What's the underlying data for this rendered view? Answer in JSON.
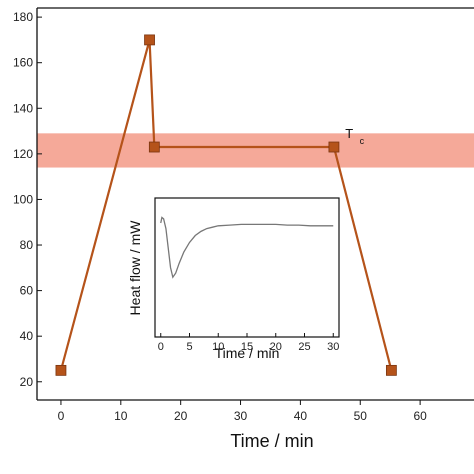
{
  "chart_data": [
    {
      "type": "line",
      "xlabel": "Time / min",
      "ylabel": "",
      "xlim": [
        -4,
        69
      ],
      "ylim": [
        12,
        184
      ],
      "x_ticks": [
        0,
        10,
        20,
        30,
        40,
        50,
        60
      ],
      "y_ticks": [
        20,
        40,
        60,
        80,
        100,
        120,
        140,
        160,
        180
      ],
      "grid": false,
      "series": [
        {
          "x": [
            0,
            14.8,
            15.6,
            45.6,
            55.2
          ],
          "y": [
            25,
            170,
            123,
            123,
            25
          ],
          "color": "#b5531a",
          "marker": "square"
        }
      ],
      "band": {
        "y": [
          114,
          129
        ],
        "color": "#f4a08e"
      },
      "annotation": {
        "text": "T",
        "subscript": "c",
        "x": 47.5,
        "y": 127
      }
    },
    {
      "type": "line",
      "xlabel": "Time / min",
      "ylabel": "Heat flow / mW",
      "xlim": [
        -1,
        31
      ],
      "ylim": [
        0,
        100
      ],
      "x_ticks": [
        0,
        5,
        10,
        15,
        20,
        25,
        30
      ],
      "grid": false,
      "series": [
        {
          "x": [
            0,
            0.2,
            0.5,
            0.9,
            1.3,
            1.7,
            2.1,
            2.6,
            3.2,
            4,
            5,
            6,
            7,
            8,
            9,
            10,
            12,
            14,
            16,
            18,
            20,
            22,
            24,
            26,
            28,
            30
          ],
          "y": [
            82,
            86,
            85,
            78,
            64,
            50,
            43,
            46,
            53,
            61,
            68,
            73,
            76,
            78,
            79,
            80,
            80.5,
            81,
            81,
            81,
            81,
            80.5,
            80.5,
            80,
            80,
            80
          ],
          "color": "#777777"
        }
      ]
    }
  ]
}
